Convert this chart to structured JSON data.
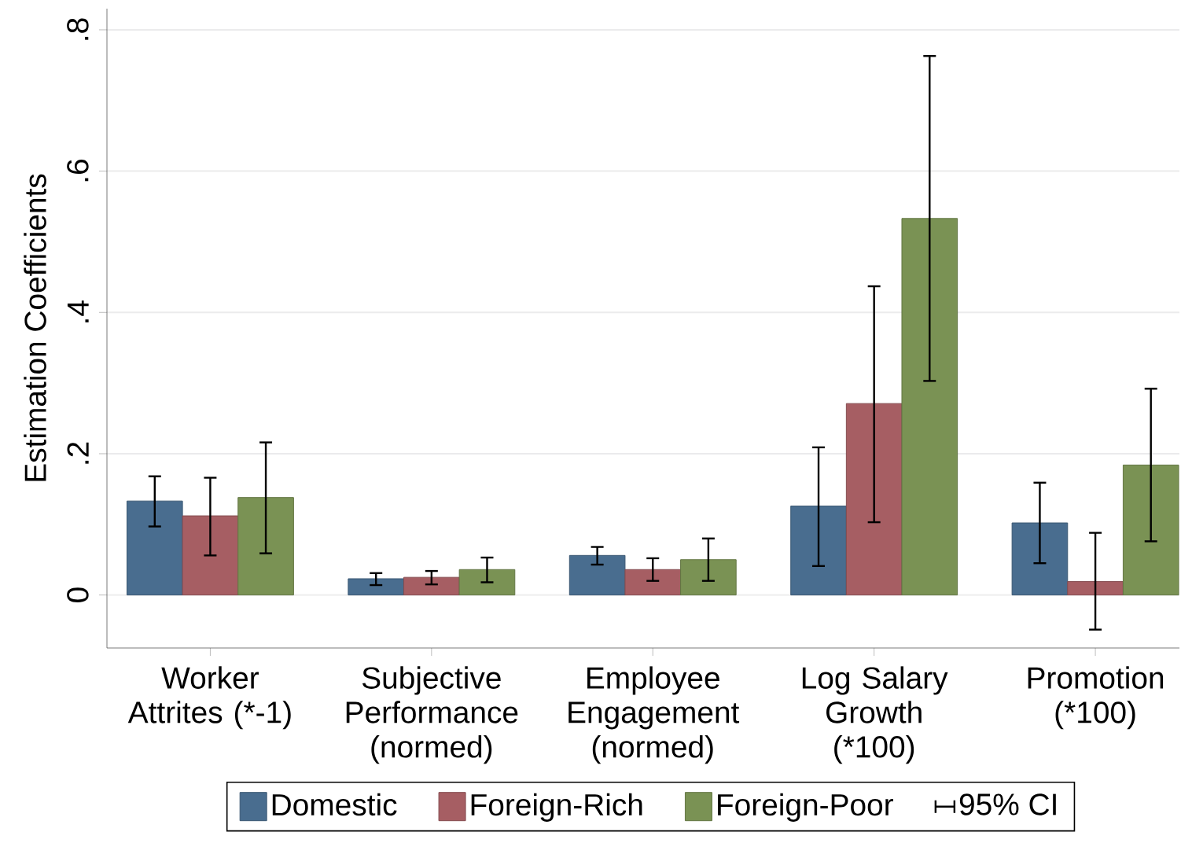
{
  "chart_data": {
    "type": "bar",
    "ylabel": "Estimation Coefficients",
    "categories": [
      "Worker Attrites (*-1)",
      "Subjective Performance (normed)",
      "Employee Engagement (normed)",
      "Log Salary Growth (*100)",
      "Promotion (*100)"
    ],
    "series": [
      {
        "name": "Domestic",
        "color": "#496d8f",
        "values": [
          0.133,
          0.023,
          0.056,
          0.126,
          0.102
        ],
        "errors": [
          [
            0.097,
            0.168
          ],
          [
            0.014,
            0.031
          ],
          [
            0.043,
            0.068
          ],
          [
            0.041,
            0.209
          ],
          [
            0.045,
            0.159
          ]
        ]
      },
      {
        "name": "Foreign-Rich",
        "color": "#a65e63",
        "values": [
          0.112,
          0.025,
          0.036,
          0.271,
          0.019
        ],
        "errors": [
          [
            0.056,
            0.166
          ],
          [
            0.015,
            0.034
          ],
          [
            0.02,
            0.052
          ],
          [
            0.103,
            0.437
          ],
          [
            -0.049,
            0.088
          ]
        ]
      },
      {
        "name": "Foreign-Poor",
        "color": "#7a9254",
        "values": [
          0.138,
          0.036,
          0.05,
          0.533,
          0.184
        ],
        "errors": [
          [
            0.059,
            0.216
          ],
          [
            0.018,
            0.053
          ],
          [
            0.02,
            0.08
          ],
          [
            0.303,
            0.763
          ],
          [
            0.076,
            0.292
          ]
        ]
      }
    ],
    "annotations": [
      "95% CI"
    ],
    "ylim": [
      -0.075,
      0.83
    ],
    "yticks": [
      0,
      {
        "value": 0.2,
        "label": ".2"
      },
      {
        "value": 0.4,
        "label": ".4"
      },
      {
        "value": 0.6,
        "label": ".6"
      },
      {
        "value": 0.8,
        "label": ".8"
      }
    ],
    "grid": "y",
    "legend": "bottom"
  }
}
